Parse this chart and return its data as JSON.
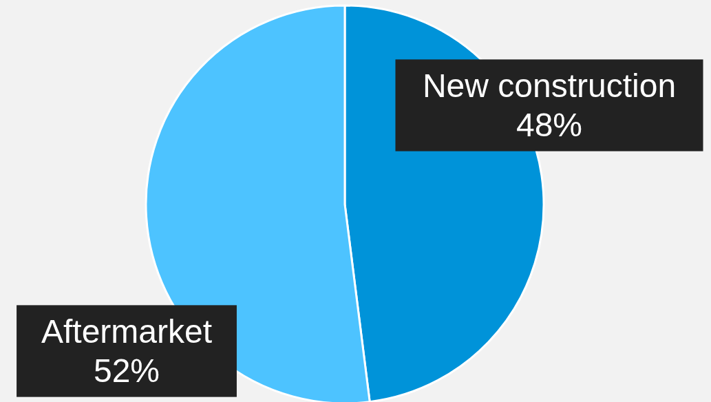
{
  "chart_data": {
    "type": "pie",
    "categories": [
      "New construction",
      "Aftermarket"
    ],
    "values": [
      48,
      52
    ],
    "value_labels": [
      "48%",
      "52%"
    ],
    "colors": [
      "#0093d9",
      "#4dc3ff"
    ]
  }
}
